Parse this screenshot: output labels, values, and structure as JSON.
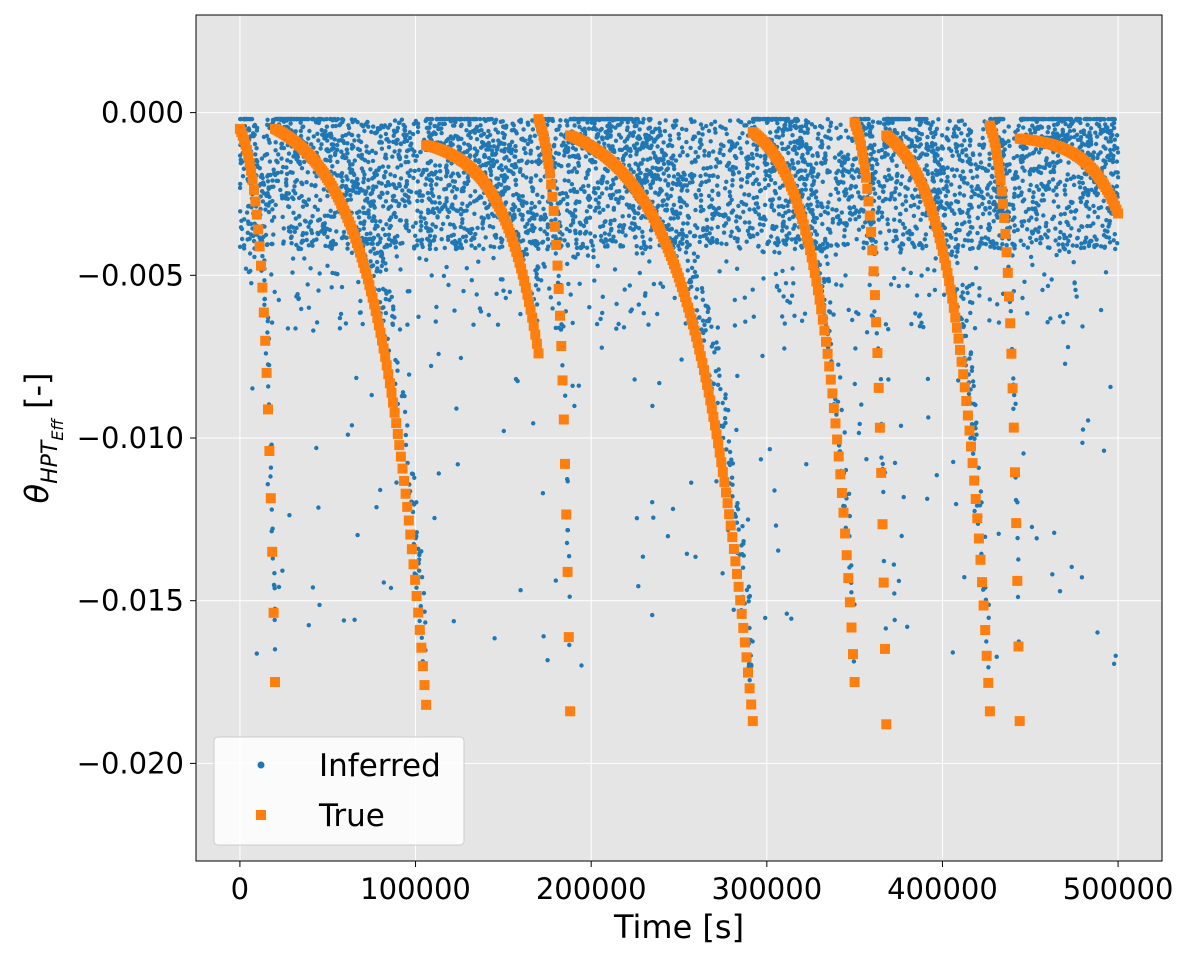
{
  "chart_data": {
    "type": "scatter",
    "title": "",
    "xlabel": "Time [s]",
    "ylabel_parts": {
      "symbol": "θ",
      "sub": "HPT",
      "subsub": "Eff",
      "unit": "[-]"
    },
    "xlim": [
      -25000,
      525000
    ],
    "ylim": [
      -0.023,
      0.003
    ],
    "xticks": [
      0,
      100000,
      200000,
      300000,
      400000,
      500000
    ],
    "xtick_labels": [
      "0",
      "100000",
      "200000",
      "300000",
      "400000",
      "500000"
    ],
    "yticks": [
      0.0,
      -0.005,
      -0.01,
      -0.015,
      -0.02
    ],
    "ytick_labels": [
      "0.000",
      "−0.005",
      "−0.010",
      "−0.015",
      "−0.020"
    ],
    "grid": true,
    "legend_position": "lower-left",
    "colors": {
      "Inferred": "#1f77b4",
      "True": "#ff7f0e",
      "plot_bg": "#e5e5e5",
      "grid": "#ffffff"
    },
    "segments": [
      {
        "t_start": 0,
        "t_end": 20000,
        "y_start": -0.0005,
        "y_end": -0.0175
      },
      {
        "t_start": 20000,
        "t_end": 106000,
        "y_start": -0.0005,
        "y_end": -0.0182
      },
      {
        "t_start": 106000,
        "t_end": 170000,
        "y_start": -0.001,
        "y_end": -0.0074
      },
      {
        "t_start": 170000,
        "t_end": 188000,
        "y_start": -0.0002,
        "y_end": -0.0184
      },
      {
        "t_start": 188000,
        "t_end": 292000,
        "y_start": -0.0007,
        "y_end": -0.0187
      },
      {
        "t_start": 292000,
        "t_end": 350000,
        "y_start": -0.0006,
        "y_end": -0.0175
      },
      {
        "t_start": 350000,
        "t_end": 368000,
        "y_start": -0.0003,
        "y_end": -0.0188
      },
      {
        "t_start": 368000,
        "t_end": 427000,
        "y_start": -0.0007,
        "y_end": -0.0184
      },
      {
        "t_start": 427000,
        "t_end": 444000,
        "y_start": -0.0004,
        "y_end": -0.0187
      },
      {
        "t_start": 444000,
        "t_end": 500000,
        "y_start": -0.0008,
        "y_end": -0.0031
      }
    ],
    "series": [
      {
        "name": "Inferred",
        "marker": "point"
      },
      {
        "name": "True",
        "marker": "square"
      }
    ]
  }
}
